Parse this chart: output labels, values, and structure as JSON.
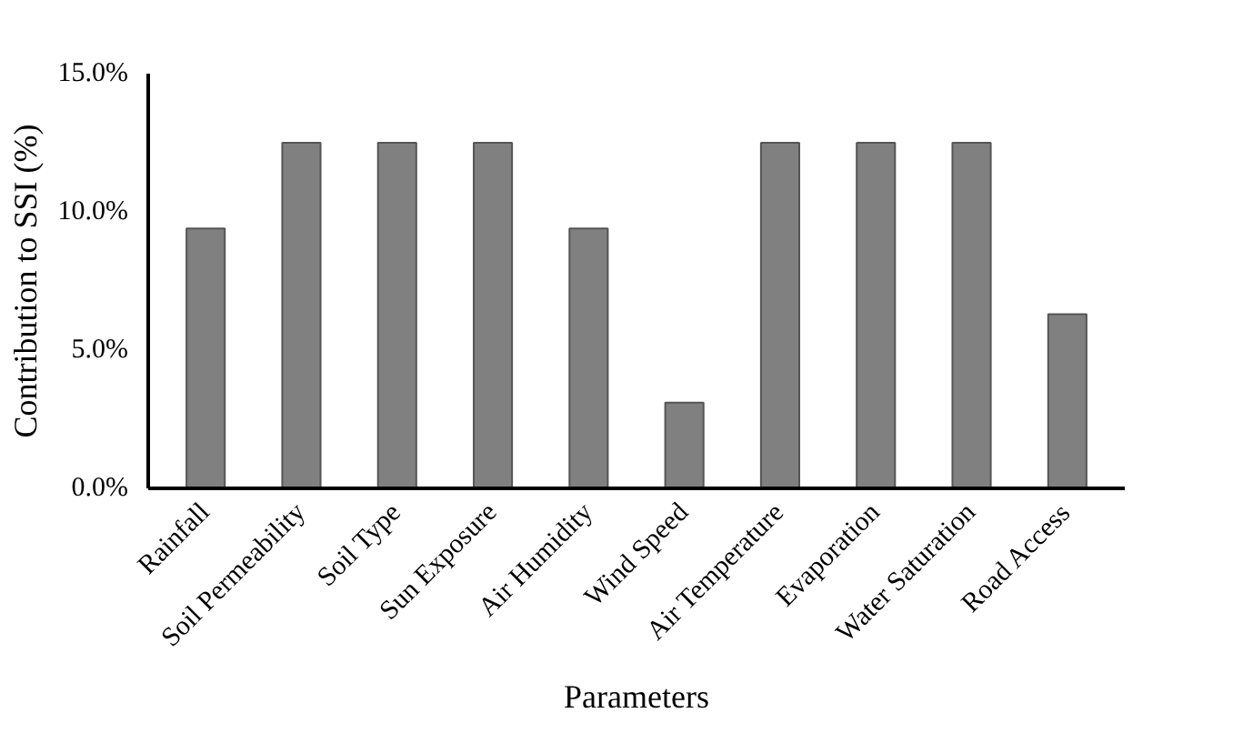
{
  "chart_data": {
    "type": "bar",
    "xlabel": "Parameters",
    "ylabel": "Contribution to SSI (%)",
    "categories": [
      "Rainfall",
      "Soil Permeability",
      "Soil Type",
      "Sun Exposure",
      "Air Humidity",
      "Wind Speed",
      "Air Temperature",
      "Evaporation",
      "Water Saturation",
      "Road Access"
    ],
    "values": [
      9.4,
      12.5,
      12.5,
      12.5,
      9.4,
      3.1,
      12.5,
      12.5,
      12.5,
      6.3
    ],
    "color": "#808080",
    "ylim": [
      0,
      15
    ],
    "yticks": [
      {
        "value": 0,
        "label": "0.0%"
      },
      {
        "value": 5,
        "label": "5.0%"
      },
      {
        "value": 10,
        "label": "10.0%"
      },
      {
        "value": 15,
        "label": "15.0%"
      }
    ],
    "grid": false
  }
}
